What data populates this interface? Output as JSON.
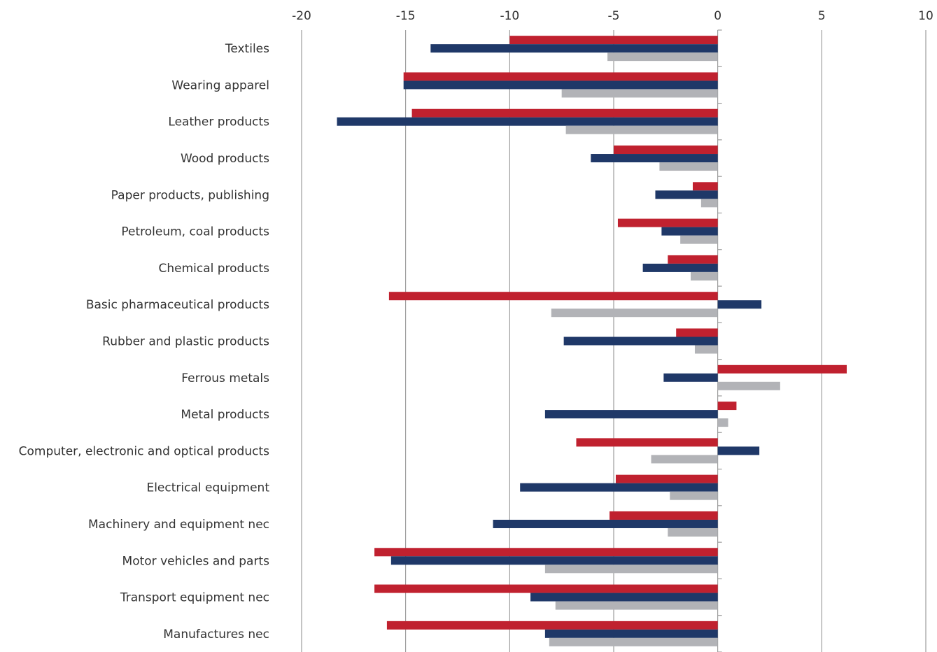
{
  "chart_data": {
    "type": "bar",
    "orientation": "horizontal",
    "title": "",
    "xlabel": "",
    "ylabel": "",
    "xlim": [
      -20,
      10
    ],
    "xticks": [
      -20,
      -15,
      -10,
      -5,
      0,
      5,
      10
    ],
    "x_tick_labels": [
      "-20",
      "-15",
      "-10",
      "-5",
      "0",
      "5",
      "10"
    ],
    "axis_position": "top",
    "grid": "vertical",
    "legend": "none",
    "categories": [
      "Textiles",
      "Wearing apparel",
      "Leather products",
      "Wood products",
      "Paper products, publishing",
      "Petroleum, coal products",
      "Chemical products",
      "Basic pharmaceutical products",
      "Rubber and plastic products",
      "Ferrous metals",
      "Metal products",
      "Computer, electronic and optical products",
      "Electrical equipment",
      "Machinery and equipment nec",
      "Motor vehicles and parts",
      "Transport equipment nec",
      "Manufactures nec"
    ],
    "series": [
      {
        "color": "#c0212f",
        "values": [
          -10.0,
          -15.1,
          -14.7,
          -5.0,
          -1.2,
          -4.8,
          -2.4,
          -15.8,
          -2.0,
          6.2,
          0.9,
          -6.8,
          -4.9,
          -5.2,
          -16.5,
          -16.5,
          -15.9
        ]
      },
      {
        "color": "#1f3868",
        "values": [
          -13.8,
          -15.1,
          -18.3,
          -6.1,
          -3.0,
          -2.7,
          -3.6,
          2.1,
          -7.4,
          -2.6,
          -8.3,
          2.0,
          -9.5,
          -10.8,
          -15.7,
          -9.0,
          -8.3
        ]
      },
      {
        "color": "#b2b3b7",
        "values": [
          -5.3,
          -7.5,
          -7.3,
          -2.8,
          -0.8,
          -1.8,
          -1.3,
          -8.0,
          -1.1,
          3.0,
          0.5,
          -3.2,
          -2.3,
          -2.4,
          -8.3,
          -7.8,
          -8.1
        ]
      }
    ]
  }
}
